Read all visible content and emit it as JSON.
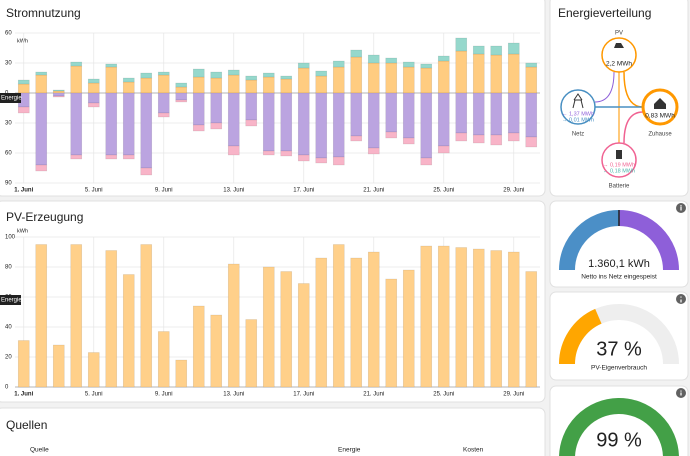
{
  "chart_data": [
    {
      "type": "bar",
      "stacked": true,
      "title": "Stromnutzung",
      "y_unit": "kWh",
      "tooltip": "Energie",
      "categories": [
        "1. Juni",
        null,
        null,
        null,
        "5. Juni",
        null,
        null,
        null,
        "9. Juni",
        null,
        null,
        null,
        "13. Juni",
        null,
        null,
        null,
        "17. Juni",
        null,
        null,
        null,
        "21. Juni",
        null,
        null,
        null,
        "25. Juni",
        null,
        null,
        null,
        "29. Juni",
        null
      ],
      "series": [
        {
          "color": "#ffcc80",
          "values": [
            9,
            18,
            2,
            27,
            10,
            26,
            11,
            15,
            18,
            6,
            16,
            15,
            18,
            13,
            16,
            14,
            25,
            17,
            26,
            36,
            30,
            30,
            26,
            25,
            32,
            42,
            39,
            38,
            39,
            26
          ]
        },
        {
          "color": "#96d8cc",
          "values": [
            4,
            3,
            1,
            4,
            4,
            3,
            4,
            5,
            3,
            4,
            8,
            6,
            5,
            4,
            4,
            3,
            5,
            5,
            6,
            7,
            8,
            5,
            5,
            4,
            5,
            13,
            8,
            9,
            11,
            4
          ]
        },
        {
          "color": "#bba4e0",
          "values": [
            -14,
            -72,
            -3,
            -62,
            -10,
            -62,
            -62,
            -75,
            -20,
            -7,
            -32,
            -30,
            -53,
            -27,
            -58,
            -58,
            -62,
            -65,
            -64,
            -43,
            -55,
            -39,
            -45,
            -65,
            -53,
            -40,
            -42,
            -42,
            -40,
            -44
          ]
        },
        {
          "color": "#f8b4c8",
          "values": [
            -6,
            -6,
            -1,
            -4,
            -4,
            -4,
            -4,
            -7,
            -4,
            -2,
            -6,
            -6,
            -9,
            -6,
            -4,
            -5,
            -6,
            -5,
            -8,
            -5,
            -6,
            -6,
            -6,
            -7,
            -7,
            -8,
            -8,
            -10,
            -8,
            -10
          ]
        }
      ],
      "ylim": [
        -90,
        60
      ],
      "yticks": [
        60,
        30,
        0,
        {
          "value": -30,
          "label": "30"
        },
        {
          "value": -60,
          "label": "60"
        },
        {
          "value": -90,
          "label": "90"
        }
      ],
      "grid": true
    },
    {
      "type": "bar",
      "title": "PV-Erzeugung",
      "y_unit": "kWh",
      "tooltip": "Energie",
      "categories": [
        "1. Juni",
        null,
        null,
        null,
        "5. Juni",
        null,
        null,
        null,
        "9. Juni",
        null,
        null,
        null,
        "13. Juni",
        null,
        null,
        null,
        "17. Juni",
        null,
        null,
        null,
        "21. Juni",
        null,
        null,
        null,
        "25. Juni",
        null,
        null,
        null,
        "29. Juni",
        null
      ],
      "series": [
        {
          "color": "#ffd08a",
          "values": [
            31,
            95,
            28,
            95,
            23,
            91,
            75,
            95,
            37,
            18,
            54,
            48,
            82,
            45,
            80,
            77,
            69,
            86,
            95,
            86,
            90,
            72,
            78,
            94,
            94,
            93,
            92,
            91,
            90,
            77
          ]
        }
      ],
      "ylim": [
        0,
        100
      ],
      "yticks": [
        0,
        20,
        40,
        60,
        80,
        100
      ],
      "grid": true
    },
    {
      "type": "gauge",
      "split": true,
      "colors": [
        "#4b8fc7",
        "#8e5fd9"
      ],
      "values": [
        1360.1
      ],
      "value_labels": [
        "1.360,1 kWh"
      ],
      "subtitle": "Netto ins Netz eingespeist"
    },
    {
      "type": "gauge",
      "color": "#ffa600",
      "ylim": [
        0,
        100
      ],
      "values": [
        37
      ],
      "value_labels": [
        "37 %"
      ],
      "subtitle": "PV-Eigenverbrauch"
    },
    {
      "type": "gauge",
      "color": "#43a047",
      "ylim": [
        0,
        100
      ],
      "values": [
        99
      ],
      "value_labels": [
        "99 %"
      ]
    }
  ],
  "energy_distribution": {
    "title": "Energieverteilung",
    "pv": {
      "label": "PV",
      "value": "2,2 MWh"
    },
    "grid": {
      "label": "Netz",
      "in": "← 1,37 MWh",
      "out": "→ 0,01 MWh"
    },
    "home": {
      "label": "Zuhause",
      "value": "0,83 MWh"
    },
    "battery": {
      "label": "Batterie",
      "in": "→ 0,19 MWh",
      "out": "← 0,18 MWh"
    }
  },
  "sources": {
    "title": "Quellen",
    "columns": [
      "Quelle",
      "Energie",
      "Kosten"
    ]
  }
}
